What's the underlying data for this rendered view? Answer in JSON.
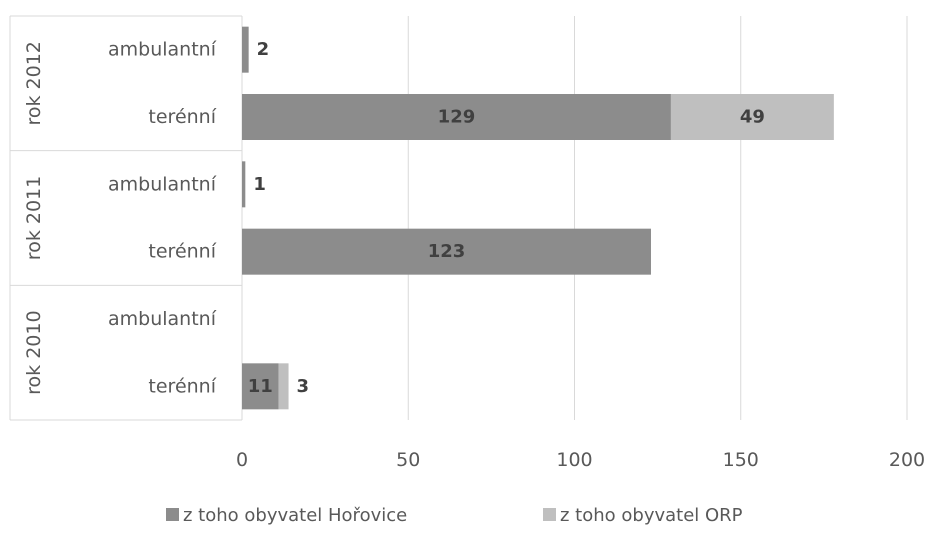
{
  "chart_data": {
    "type": "bar",
    "orientation": "horizontal",
    "stacked": true,
    "title": "",
    "xlabel": "",
    "ylabel": "",
    "xlim": [
      0,
      200
    ],
    "x_ticks": [
      0,
      50,
      100,
      150,
      200
    ],
    "grid": "vertical",
    "legend_position": "bottom",
    "groups": [
      {
        "label": "rok 2012",
        "categories": [
          "ambulantní",
          "terénní"
        ]
      },
      {
        "label": "rok 2011",
        "categories": [
          "ambulantní",
          "terénní"
        ]
      },
      {
        "label": "rok 2010",
        "categories": [
          "ambulantní",
          "terénní"
        ]
      }
    ],
    "series": [
      {
        "name": "z toho obyvatel Hořovice",
        "color": "#8c8c8c",
        "values": [
          2,
          129,
          1,
          123,
          null,
          11
        ]
      },
      {
        "name": "z toho obyvatel ORP",
        "color": "#bfbfbf",
        "values": [
          null,
          49,
          null,
          null,
          null,
          3
        ]
      }
    ]
  }
}
